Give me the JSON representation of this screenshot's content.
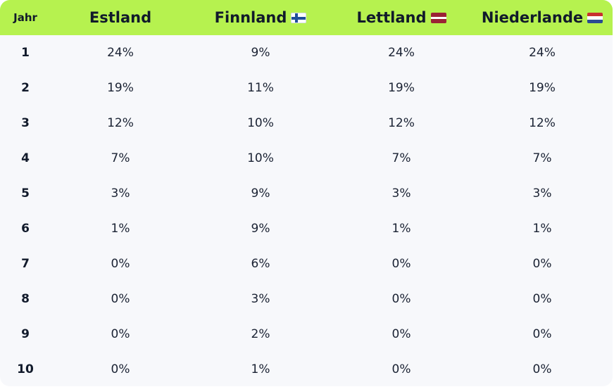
{
  "table": {
    "headers": {
      "year": "Jahr",
      "countries": [
        {
          "label": "Estland",
          "flag": ""
        },
        {
          "label": "Finnland",
          "flag": "finland-flag-icon"
        },
        {
          "label": "Lettland",
          "flag": "latvia-flag-icon"
        },
        {
          "label": "Niederlande",
          "flag": "netherlands-flag-icon"
        }
      ]
    },
    "rows": [
      {
        "year": "1",
        "values": [
          "24%",
          "9%",
          "24%",
          "24%"
        ]
      },
      {
        "year": "2",
        "values": [
          "19%",
          "11%",
          "19%",
          "19%"
        ]
      },
      {
        "year": "3",
        "values": [
          "12%",
          "10%",
          "12%",
          "12%"
        ]
      },
      {
        "year": "4",
        "values": [
          "7%",
          "10%",
          "7%",
          "7%"
        ]
      },
      {
        "year": "5",
        "values": [
          "3%",
          "9%",
          "3%",
          "3%"
        ]
      },
      {
        "year": "6",
        "values": [
          "1%",
          "9%",
          "1%",
          "1%"
        ]
      },
      {
        "year": "7",
        "values": [
          "0%",
          "6%",
          "0%",
          "0%"
        ]
      },
      {
        "year": "8",
        "values": [
          "0%",
          "3%",
          "0%",
          "0%"
        ]
      },
      {
        "year": "9",
        "values": [
          "0%",
          "2%",
          "0%",
          "0%"
        ]
      },
      {
        "year": "10",
        "values": [
          "0%",
          "1%",
          "0%",
          "0%"
        ]
      }
    ]
  },
  "colors": {
    "header_background": "#b6f24f",
    "table_background": "#f7f8fb",
    "text": "#1a2233"
  }
}
